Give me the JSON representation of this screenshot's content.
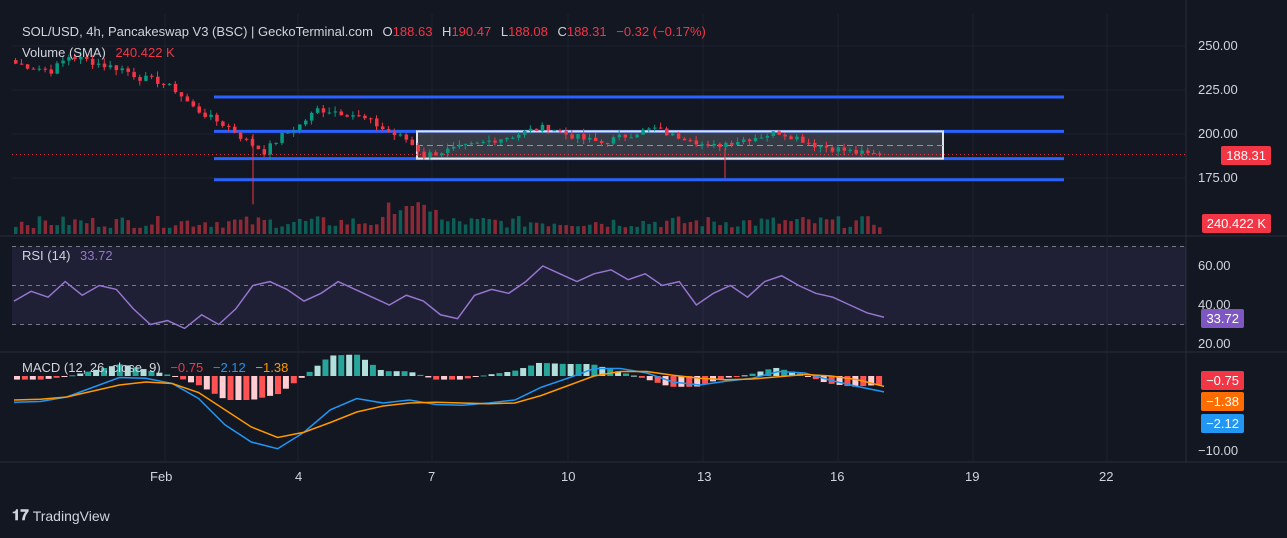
{
  "header": {
    "symbol": "SOL/USD, 4h, Pancakeswap V3 (BSC) | GeckoTerminal.com",
    "o_label": "O",
    "o": "188.63",
    "h_label": "H",
    "h": "190.47",
    "l_label": "L",
    "l": "188.08",
    "c_label": "C",
    "c": "188.31",
    "change": "−0.32 (−0.17%)",
    "volume_label": "Volume (SMA)",
    "volume_value": "240.422 K",
    "rsi_label": "RSI (14)",
    "rsi_value": "33.72",
    "macd_label": "MACD (12, 26, close, 9)",
    "macd_hist": "−0.75",
    "macd_line": "−2.12",
    "macd_signal": "−1.38"
  },
  "price_axis": {
    "ticks": [
      "250.00",
      "225.00",
      "200.00",
      "175.00"
    ],
    "current": "188.31",
    "volume_tag": "240.422 K"
  },
  "rsi_axis": {
    "ticks": [
      "60.00",
      "40.00",
      "20.00"
    ],
    "current": "33.72"
  },
  "macd_axis": {
    "ticks": [
      "−10.00"
    ],
    "tags": [
      "−0.75",
      "−1.38",
      "−2.12"
    ]
  },
  "time_axis": {
    "labels": [
      "Feb",
      "4",
      "7",
      "10",
      "13",
      "16",
      "19",
      "22"
    ]
  },
  "footer": {
    "brand": "TradingView"
  },
  "colors": {
    "up": "#089981",
    "down": "#f23645",
    "rsi": "#9575cd",
    "macd": "#2196f3",
    "signal": "#ff9800",
    "levels": "#2962ff",
    "bg": "#131722"
  },
  "chart_data": [
    {
      "type": "candlestick",
      "title": "SOL/USD, 4h",
      "ylim": [
        160,
        258
      ],
      "x_range": [
        "Jan 30",
        "Feb 23"
      ],
      "close_approx": [
        240,
        238,
        236,
        244,
        242,
        239,
        237,
        232,
        230,
        225,
        215,
        209,
        204,
        196,
        190,
        199,
        205,
        214,
        213,
        211,
        207,
        201,
        197,
        188,
        190,
        192,
        194,
        197,
        199,
        202,
        204,
        200,
        197,
        195,
        198,
        201,
        203,
        199,
        198,
        192,
        195,
        197,
        199,
        201,
        198,
        194,
        192,
        190,
        188.31
      ],
      "horizontal_levels": [
        221,
        201.5,
        186,
        174
      ],
      "range_box": [
        186,
        201.5
      ],
      "last_close": 188.31
    },
    {
      "type": "bar",
      "title": "Volume (SMA)",
      "last": "240.422 K"
    },
    {
      "type": "line",
      "title": "RSI (14)",
      "ylim": [
        15,
        75
      ],
      "bands": [
        30,
        50,
        70
      ],
      "values": [
        42,
        47,
        44,
        52,
        45,
        50,
        48,
        38,
        30,
        32,
        28,
        35,
        30,
        38,
        50,
        52,
        48,
        42,
        46,
        52,
        48,
        44,
        40,
        45,
        42,
        35,
        33,
        45,
        48,
        46,
        52,
        60,
        56,
        52,
        56,
        58,
        53,
        56,
        50,
        52,
        40,
        46,
        50,
        44,
        52,
        55,
        50,
        46,
        44,
        40,
        36,
        33.72
      ]
    },
    {
      "type": "line",
      "title": "MACD (12, 26, close, 9)",
      "ylim": [
        -11,
        1
      ],
      "series": [
        {
          "name": "MACD",
          "values": [
            -3.5,
            -3.4,
            -2.8,
            -1.5,
            -0.2,
            -0.3,
            -1.0,
            -3.0,
            -6.5,
            -8.8,
            -9.7,
            -7.5,
            -4.5,
            -3.0,
            -3.6,
            -3.2,
            -3.8,
            -3.9,
            -3.6,
            -3.2,
            -1.5,
            -0.3,
            1.0,
            1.0,
            0.4,
            -0.8,
            -1.2,
            -0.7,
            -0.3,
            0.6,
            0.4,
            -0.6,
            -1.4,
            -2.12
          ]
        },
        {
          "name": "Signal",
          "values": [
            -3.2,
            -3.1,
            -2.8,
            -2.0,
            -1.2,
            -0.8,
            -1.0,
            -2.2,
            -4.5,
            -6.8,
            -8.2,
            -7.5,
            -6.2,
            -4.8,
            -4.0,
            -3.6,
            -3.5,
            -3.6,
            -3.7,
            -3.6,
            -2.6,
            -1.3,
            0.0,
            0.6,
            0.6,
            0.1,
            -0.3,
            -0.5,
            -0.4,
            -0.1,
            0.2,
            0.0,
            -0.5,
            -1.38
          ]
        }
      ],
      "histogram_last": -0.75
    }
  ]
}
